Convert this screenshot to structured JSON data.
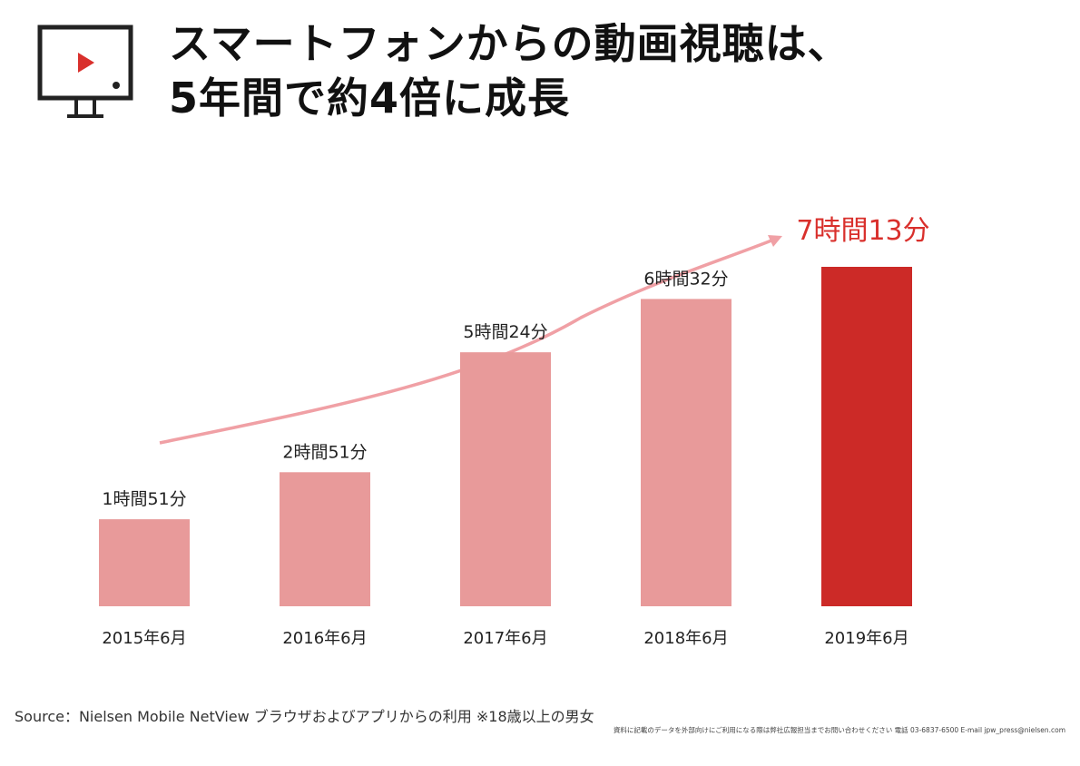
{
  "header": {
    "title_line1": "スマートフォンからの動画視聴は、",
    "title_line2": "5年間で約4倍に成長",
    "icon": "tv-play-icon"
  },
  "chart_data": {
    "type": "bar",
    "categories": [
      "2015年6月",
      "2016年6月",
      "2017年6月",
      "2018年6月",
      "2019年6月"
    ],
    "values": [
      111,
      171,
      324,
      392,
      433
    ],
    "value_unit": "minutes",
    "data_labels": [
      "1時間51分",
      "2時間51分",
      "5時間24分",
      "6時間32分",
      "7時間13分"
    ],
    "highlight_index": 4,
    "colors": {
      "bar": "#e89a9a",
      "highlight_bar": "#cc2a27",
      "highlight_label": "#d9302c",
      "trend_arrow": "#f0a0a5"
    },
    "trend_arrow": true,
    "ylim": [
      0,
      433
    ],
    "grid": false,
    "legend": "none"
  },
  "footer": {
    "source": "Source：Nielsen Mobile NetView ブラウザおよびアプリからの利用 ※18歳以上の男女",
    "note": "資料に記載のデータを外部向けにご利用になる際は弊社広報担当までお問い合わせください 電話 03-6837-6500 E-mail jpw_press@nielsen.com"
  }
}
